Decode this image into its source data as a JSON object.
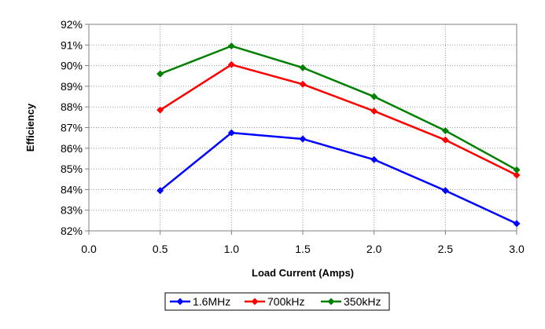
{
  "chart_data": {
    "type": "line",
    "title": "",
    "xlabel": "Load Current (Amps)",
    "ylabel": "Efficiency",
    "xlim": [
      0,
      3
    ],
    "ylim": [
      82,
      92
    ],
    "x_ticks": [
      "0.0",
      "0.5",
      "1.0",
      "1.5",
      "2.0",
      "2.5",
      "3.0"
    ],
    "x_tick_values": [
      0,
      0.5,
      1.0,
      1.5,
      2.0,
      2.5,
      3.0
    ],
    "y_ticks": [
      "82%",
      "83%",
      "84%",
      "85%",
      "86%",
      "87%",
      "88%",
      "89%",
      "90%",
      "91%",
      "92%"
    ],
    "y_tick_values": [
      82,
      83,
      84,
      85,
      86,
      87,
      88,
      89,
      90,
      91,
      92
    ],
    "grid": true,
    "legend_position": "bottom",
    "x": [
      0.5,
      1.0,
      1.5,
      2.0,
      2.5,
      3.0
    ],
    "series": [
      {
        "name": "1.6MHz",
        "color": "#0000ff",
        "values": [
          83.95,
          86.75,
          86.45,
          85.45,
          83.95,
          82.35
        ]
      },
      {
        "name": "700kHz",
        "color": "#ff0000",
        "values": [
          87.85,
          90.05,
          89.1,
          87.8,
          86.4,
          84.7
        ]
      },
      {
        "name": "350kHz",
        "color": "#008000",
        "values": [
          89.6,
          90.95,
          89.9,
          88.5,
          86.85,
          84.95
        ]
      }
    ]
  }
}
